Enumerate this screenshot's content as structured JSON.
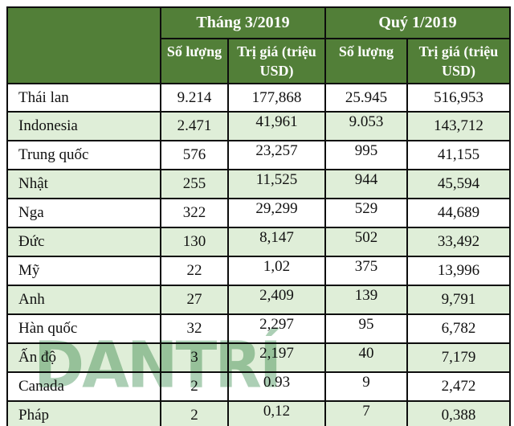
{
  "colors": {
    "header_bg": "#527f38",
    "header_text": "#ffffff",
    "row_bg": "#ffffff",
    "row_alt_bg": "#dfeed8",
    "border": "#0d0d0d",
    "text": "#111111",
    "watermark": "#9ec7a8",
    "page_bg": "#ffffff"
  },
  "watermark": {
    "text": "DANTRÍ"
  },
  "chart_data": {
    "type": "table",
    "header": {
      "corner_label": "",
      "groups": [
        {
          "label": "Tháng 3/2019",
          "subcolumns": [
            "Số lượng",
            "Trị giá (triệu USD)"
          ]
        },
        {
          "label": "Quý 1/2019",
          "subcolumns": [
            "Số lượng",
            "Trị giá (triệu USD)"
          ]
        }
      ]
    },
    "rows": [
      {
        "country": "Thái lan",
        "values": [
          "9.214",
          "177,868",
          "25.945",
          "516,953"
        ]
      },
      {
        "country": "Indonesia",
        "values": [
          "2.471",
          "41,961",
          "9.053",
          "143,712"
        ]
      },
      {
        "country": "Trung quốc",
        "values": [
          "576",
          "23,257",
          "995",
          "41,155"
        ]
      },
      {
        "country": "Nhật",
        "values": [
          "255",
          "11,525",
          "944",
          "45,594"
        ]
      },
      {
        "country": "Nga",
        "values": [
          "322",
          "29,299",
          "529",
          "44,689"
        ]
      },
      {
        "country": "Đức",
        "values": [
          "130",
          "8,147",
          "502",
          "33,492"
        ]
      },
      {
        "country": "Mỹ",
        "values": [
          "22",
          "1,02",
          "375",
          "13,996"
        ]
      },
      {
        "country": "Anh",
        "values": [
          "27",
          "2,409",
          "139",
          "9,791"
        ]
      },
      {
        "country": "Hàn quốc",
        "values": [
          "32",
          "2,297",
          "95",
          "6,782"
        ]
      },
      {
        "country": "Ấn độ",
        "values": [
          "3",
          "2,197",
          "40",
          "7,179"
        ]
      },
      {
        "country": "Canada",
        "values": [
          "2",
          "0.93",
          "9",
          "2,472"
        ]
      },
      {
        "country": "Pháp",
        "values": [
          "2",
          "0,12",
          "7",
          "0,388"
        ]
      }
    ]
  }
}
